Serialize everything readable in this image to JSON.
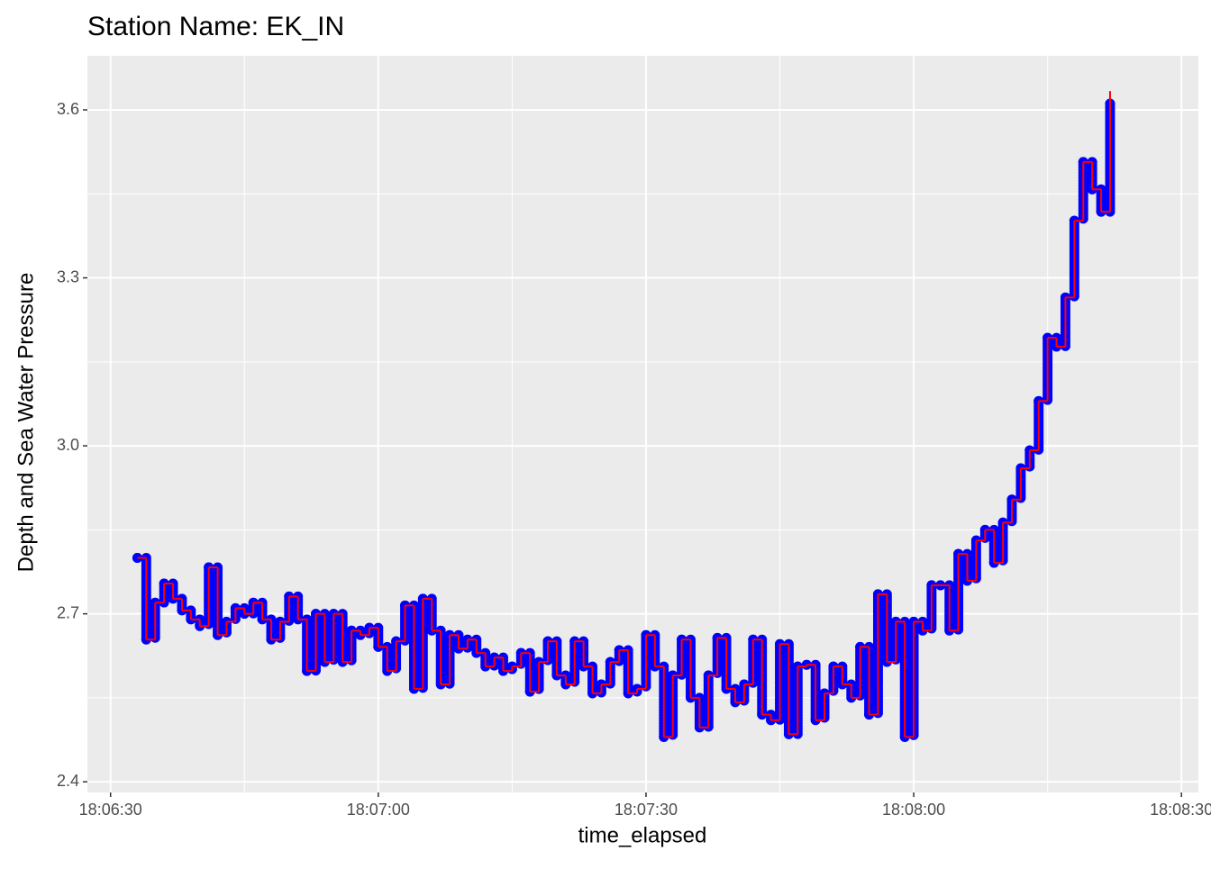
{
  "chart_data": {
    "type": "step-scatter",
    "title": "Station Name: EK_IN",
    "x_label": "time_elapsed",
    "y_label": "Depth and Sea Water Pressure",
    "xlim": [
      "18:06:27",
      "18:08:32"
    ],
    "xticks": [
      "18:06:30",
      "18:07:00",
      "18:07:30",
      "18:08:00",
      "18:08:30"
    ],
    "ylim": [
      2.381,
      3.6965
    ],
    "yticks": [
      2.4,
      2.7,
      {
        "value": 3,
        "label": "3.0"
      },
      3.3,
      3.6
    ],
    "grid": true,
    "x": [
      "18:06:33",
      "18:06:34",
      "18:06:35",
      "18:06:36",
      "18:06:37",
      "18:06:38",
      "18:06:39",
      "18:06:40",
      "18:06:41",
      "18:06:42",
      "18:06:43",
      "18:06:44",
      "18:06:45",
      "18:06:46",
      "18:06:47",
      "18:06:48",
      "18:06:49",
      "18:06:50",
      "18:06:51",
      "18:06:52",
      "18:06:53",
      "18:06:54",
      "18:06:55",
      "18:06:56",
      "18:06:57",
      "18:06:58",
      "18:06:59",
      "18:07:00",
      "18:07:01",
      "18:07:02",
      "18:07:03",
      "18:07:04",
      "18:07:05",
      "18:07:06",
      "18:07:07",
      "18:07:08",
      "18:07:09",
      "18:07:10",
      "18:07:11",
      "18:07:12",
      "18:07:13",
      "18:07:14",
      "18:07:15",
      "18:07:16",
      "18:07:17",
      "18:07:18",
      "18:07:19",
      "18:07:20",
      "18:07:21",
      "18:07:22",
      "18:07:23",
      "18:07:24",
      "18:07:25",
      "18:07:26",
      "18:07:27",
      "18:07:28",
      "18:07:29",
      "18:07:30",
      "18:07:31",
      "18:07:32",
      "18:07:33",
      "18:07:34",
      "18:07:35",
      "18:07:36",
      "18:07:37",
      "18:07:38",
      "18:07:39",
      "18:07:40",
      "18:07:41",
      "18:07:42",
      "18:07:43",
      "18:07:44",
      "18:07:45",
      "18:07:46",
      "18:07:47",
      "18:07:48",
      "18:07:49",
      "18:07:50",
      "18:07:51",
      "18:07:52",
      "18:07:53",
      "18:07:54",
      "18:07:55",
      "18:07:56",
      "18:07:57",
      "18:07:58",
      "18:07:59",
      "18:08:00",
      "18:08:01",
      "18:08:02",
      "18:08:03",
      "18:08:04",
      "18:08:05",
      "18:08:06",
      "18:08:07",
      "18:08:08",
      "18:08:09",
      "18:08:10",
      "18:08:11",
      "18:08:12",
      "18:08:13",
      "18:08:14",
      "18:08:15",
      "18:08:16",
      "18:08:17",
      "18:08:18",
      "18:08:19",
      "18:08:20",
      "18:08:21",
      "18:08:22"
    ],
    "point_color": "#0000ff",
    "line_color": "#ff0000",
    "values": [
      2.8,
      2.654,
      2.72,
      2.754,
      2.727,
      2.706,
      2.69,
      2.678,
      2.783,
      2.662,
      2.686,
      2.71,
      2.7,
      2.72,
      2.69,
      2.654,
      2.686,
      2.731,
      2.69,
      2.598,
      2.7,
      2.614,
      2.7,
      2.614,
      2.67,
      2.662,
      2.675,
      2.641,
      2.598,
      2.651,
      2.715,
      2.566,
      2.727,
      2.67,
      2.574,
      2.662,
      2.638,
      2.654,
      2.63,
      2.606,
      2.622,
      2.598,
      2.606,
      2.63,
      2.561,
      2.614,
      2.651,
      2.59,
      2.574,
      2.651,
      2.606,
      2.558,
      2.574,
      2.614,
      2.635,
      2.558,
      2.566,
      2.662,
      2.606,
      2.48,
      2.59,
      2.654,
      2.55,
      2.497,
      2.59,
      2.657,
      2.566,
      2.542,
      2.574,
      2.654,
      2.52,
      2.51,
      2.646,
      2.485,
      2.606,
      2.609,
      2.51,
      2.558,
      2.606,
      2.574,
      2.55,
      2.641,
      2.52,
      2.735,
      2.614,
      2.686,
      2.48,
      2.686,
      2.67,
      2.751,
      2.751,
      2.67,
      2.807,
      2.759,
      2.831,
      2.85,
      2.791,
      2.863,
      2.904,
      2.96,
      2.992,
      3.08,
      3.193,
      3.177,
      3.265,
      3.402,
      3.507,
      3.458,
      3.418,
      3.611
    ]
  }
}
